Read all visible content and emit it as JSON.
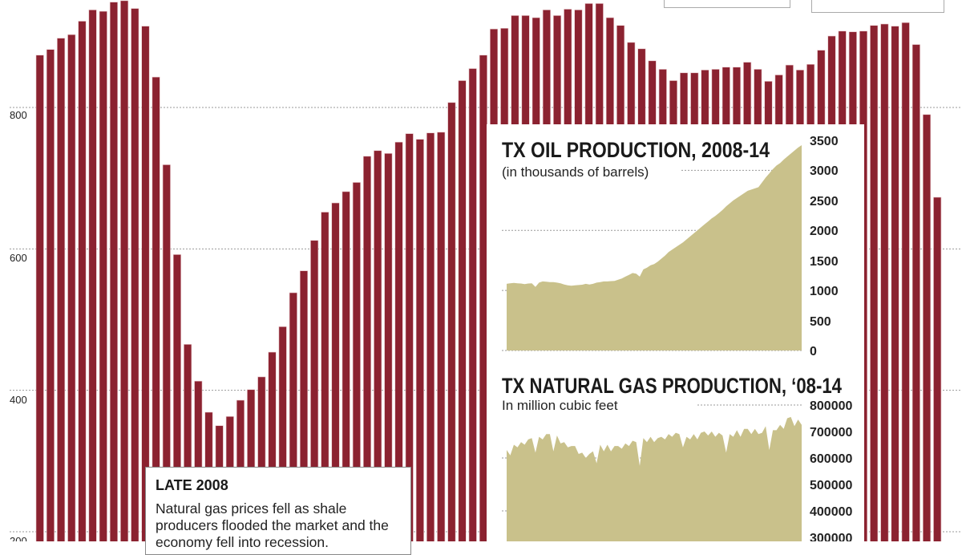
{
  "colors": {
    "bar": "#8b2230",
    "area": "#c9c18b",
    "grid": "#999999",
    "text": "#222222"
  },
  "chart_data": [
    {
      "type": "bar",
      "ylim": [
        200,
        960
      ],
      "yticks": [
        800,
        600,
        400,
        200
      ],
      "grid": true,
      "values": [
        874,
        882,
        898,
        903,
        922,
        938,
        936,
        949,
        951,
        940,
        915,
        843,
        719,
        592,
        465,
        413,
        369,
        350,
        363,
        386,
        401,
        419,
        454,
        490,
        538,
        569,
        612,
        652,
        665,
        681,
        694,
        731,
        739,
        735,
        751,
        763,
        755,
        764,
        765,
        807,
        838,
        855,
        874,
        911,
        912,
        930,
        930,
        927,
        938,
        930,
        939,
        938,
        947,
        947,
        927,
        916,
        892,
        883,
        866,
        854,
        838,
        849,
        849,
        853,
        854,
        857,
        857,
        864,
        854,
        837,
        846,
        860,
        853,
        861,
        881,
        901,
        908,
        907,
        908,
        916,
        918,
        915,
        920,
        889,
        790,
        673
      ]
    },
    {
      "type": "area",
      "title": "TX OIL PRODUCTION, 2008-14",
      "subtitle": "(in thousands of barrels)",
      "ylim": [
        0,
        3500
      ],
      "yticks": [
        "3500",
        "3000",
        "2500",
        "2000",
        "1500",
        "1000",
        "500",
        "0"
      ],
      "grid": true,
      "values": [
        1110,
        1120,
        1125,
        1120,
        1115,
        1105,
        1115,
        1120,
        1060,
        1130,
        1150,
        1145,
        1140,
        1140,
        1130,
        1120,
        1100,
        1085,
        1080,
        1085,
        1090,
        1095,
        1110,
        1100,
        1110,
        1130,
        1140,
        1150,
        1150,
        1155,
        1160,
        1180,
        1200,
        1230,
        1260,
        1290,
        1280,
        1230,
        1350,
        1380,
        1420,
        1440,
        1480,
        1530,
        1580,
        1640,
        1680,
        1720,
        1760,
        1800,
        1850,
        1900,
        1950,
        2000,
        2050,
        2100,
        2150,
        2200,
        2240,
        2290,
        2340,
        2400,
        2450,
        2500,
        2540,
        2580,
        2620,
        2660,
        2680,
        2700,
        2720,
        2800,
        2880,
        2950,
        3020,
        3080,
        3120,
        3180,
        3230,
        3280,
        3330,
        3380,
        3420
      ]
    },
    {
      "type": "area",
      "title": "TX NATURAL GAS PRODUCTION, ‘08-14",
      "subtitle": "In million cubic feet",
      "yticks": [
        "800000",
        "700000",
        "600000",
        "500000",
        "400000",
        "300000"
      ],
      "grid": true,
      "values": [
        630000,
        610000,
        650000,
        640000,
        660000,
        650000,
        670000,
        675000,
        620000,
        680000,
        670000,
        690000,
        690000,
        625000,
        685000,
        655000,
        660000,
        640000,
        645000,
        645000,
        615000,
        620000,
        600000,
        615000,
        625000,
        580000,
        650000,
        625000,
        650000,
        625000,
        645000,
        645000,
        635000,
        655000,
        645000,
        665000,
        660000,
        570000,
        675000,
        660000,
        680000,
        660000,
        675000,
        680000,
        670000,
        690000,
        680000,
        695000,
        690000,
        640000,
        680000,
        670000,
        690000,
        670000,
        695000,
        700000,
        685000,
        700000,
        680000,
        695000,
        685000,
        620000,
        690000,
        680000,
        705000,
        680000,
        710000,
        710000,
        690000,
        710000,
        690000,
        695000,
        720000,
        630000,
        705000,
        705000,
        725000,
        710000,
        750000,
        755000,
        720000,
        745000,
        725000
      ]
    }
  ],
  "annotation": {
    "heading": "LATE 2008",
    "body": "Natural gas prices fell as shale producers flooded the market and the economy fell into recession."
  }
}
